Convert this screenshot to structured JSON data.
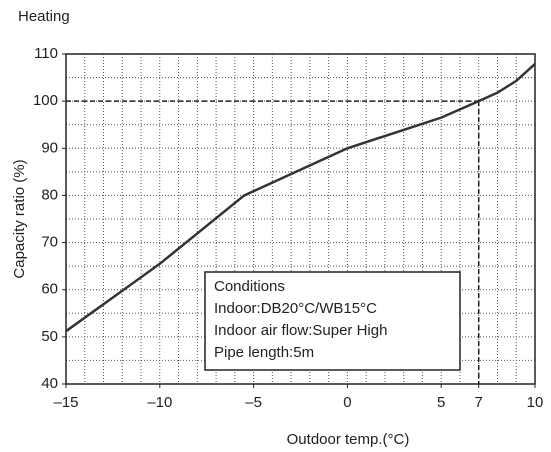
{
  "chart_data": {
    "type": "line",
    "title": "Heating",
    "x_label": "Outdoor temp.(°C)",
    "y_label": "Capacity ratio (%)",
    "x": [
      -15,
      -10,
      -5.5,
      0,
      5,
      7,
      8,
      9,
      10
    ],
    "values": [
      51.2,
      65.5,
      80,
      90,
      96.5,
      100,
      101.8,
      104.3,
      107.9
    ],
    "color": "#333333",
    "xlim": [
      -15,
      10
    ],
    "ylim": [
      40,
      110
    ],
    "xticks": [
      {
        "value": -15,
        "label": "–15"
      },
      {
        "value": -10,
        "label": "–10"
      },
      {
        "value": -5,
        "label": "–5"
      },
      0,
      5,
      7,
      10
    ],
    "yticks": [
      40,
      50,
      60,
      70,
      80,
      90,
      100,
      110
    ],
    "xgrid": [
      -14,
      -13,
      -12,
      -11,
      -10,
      -9,
      -8,
      -7,
      -6,
      -5,
      -4,
      -3,
      -2,
      -1,
      0,
      1,
      2,
      3,
      4,
      5,
      6,
      7,
      8,
      9
    ],
    "ygrid": [
      45,
      50,
      55,
      60,
      65,
      70,
      75,
      80,
      85,
      90,
      95,
      100,
      105
    ],
    "grid": true,
    "reference": {
      "x": 7,
      "y": 100
    },
    "annotation": [
      "Conditions",
      "Indoor:DB20°C/WB15°C",
      "Indoor air flow:Super High",
      "Pipe length:5m"
    ]
  }
}
